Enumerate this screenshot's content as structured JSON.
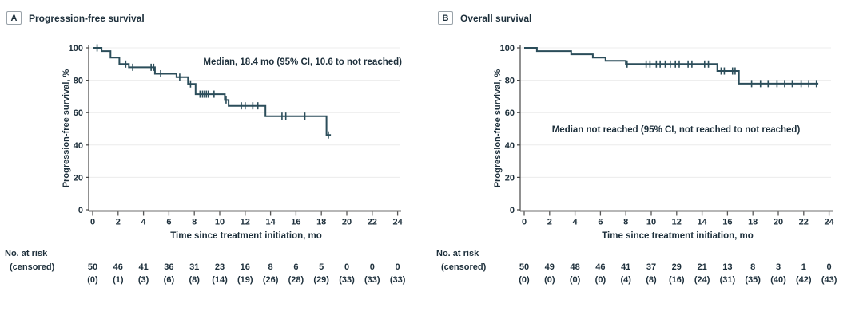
{
  "figure": {
    "colors": {
      "curve": "#2b4d5a",
      "text": "#1d2f3b",
      "grid": "#ececec",
      "x_axis": "#6f6f6f",
      "y_axis": "#474747",
      "tick": "#565656"
    },
    "panels": [
      {
        "label": "A",
        "title": "Progression-free survival"
      },
      {
        "label": "B",
        "title": "Overall survival"
      }
    ]
  },
  "chart_data": [
    {
      "type": "line",
      "subtype": "kaplan-meier-step",
      "panel_label": "A",
      "title": "Progression-free survival",
      "annotation": "Median, 18.4 mo (95% CI, 10.6 to not reached)",
      "xlabel": "Time since treatment initiation, mo",
      "ylabel": "Progression-free survival, %",
      "xlim": [
        0,
        24
      ],
      "ylim": [
        0,
        100
      ],
      "xticks": [
        0,
        2,
        4,
        6,
        8,
        10,
        12,
        14,
        16,
        18,
        20,
        22,
        24
      ],
      "yticks": [
        0,
        20,
        40,
        60,
        80,
        100
      ],
      "grid": true,
      "steps": [
        [
          0,
          100
        ],
        [
          0.7,
          98
        ],
        [
          1.4,
          94
        ],
        [
          2.1,
          90
        ],
        [
          2.85,
          88
        ],
        [
          4.9,
          84
        ],
        [
          6.6,
          81.9
        ],
        [
          7.5,
          77.7
        ],
        [
          8.1,
          71.4
        ],
        [
          10.4,
          67.8
        ],
        [
          10.7,
          64.2
        ],
        [
          13.6,
          57.8
        ],
        [
          18.4,
          46.2
        ]
      ],
      "curve_end": 18.75,
      "censor_marks": [
        [
          0.35,
          100
        ],
        [
          2.6,
          90
        ],
        [
          3.15,
          88
        ],
        [
          4.6,
          88
        ],
        [
          4.8,
          88
        ],
        [
          5.35,
          84
        ],
        [
          6.85,
          81.9
        ],
        [
          7.7,
          77.7
        ],
        [
          8.45,
          71.4
        ],
        [
          8.65,
          71.4
        ],
        [
          8.8,
          71.4
        ],
        [
          8.95,
          71.4
        ],
        [
          9.1,
          71.4
        ],
        [
          9.55,
          71.4
        ],
        [
          10.5,
          67.8
        ],
        [
          11.7,
          64.2
        ],
        [
          12.0,
          64.2
        ],
        [
          12.6,
          64.2
        ],
        [
          13.0,
          64.2
        ],
        [
          14.9,
          57.8
        ],
        [
          15.2,
          57.8
        ],
        [
          16.7,
          57.8
        ],
        [
          18.55,
          46.2
        ]
      ],
      "risk_table": {
        "header_line1": "No. at risk",
        "header_line2": "(censored)",
        "times": [
          0,
          2,
          4,
          6,
          8,
          10,
          12,
          14,
          16,
          18,
          20,
          22,
          24
        ],
        "at_risk": [
          50,
          46,
          41,
          36,
          31,
          23,
          16,
          8,
          6,
          5,
          0,
          0,
          0
        ],
        "censored": [
          0,
          1,
          3,
          6,
          8,
          14,
          19,
          26,
          28,
          29,
          33,
          33,
          33
        ]
      }
    },
    {
      "type": "line",
      "subtype": "kaplan-meier-step",
      "panel_label": "B",
      "title": "Overall survival",
      "annotation": "Median not reached (95% CI, not reached to not reached)",
      "xlabel": "Time since treatment initiation, mo",
      "ylabel": "Progression-free survival, %",
      "xlim": [
        0,
        24
      ],
      "ylim": [
        0,
        100
      ],
      "xticks": [
        0,
        2,
        4,
        6,
        8,
        10,
        12,
        14,
        16,
        18,
        20,
        22,
        24
      ],
      "yticks": [
        0,
        20,
        40,
        60,
        80,
        100
      ],
      "grid": true,
      "steps": [
        [
          0,
          100
        ],
        [
          1.0,
          98
        ],
        [
          3.7,
          96
        ],
        [
          5.4,
          94
        ],
        [
          6.4,
          92
        ],
        [
          8.0,
          90
        ],
        [
          15.2,
          85.7
        ],
        [
          16.9,
          77.9
        ]
      ],
      "curve_end": 23.15,
      "censor_marks": [
        [
          8.1,
          90
        ],
        [
          9.6,
          90
        ],
        [
          9.9,
          90
        ],
        [
          10.4,
          90
        ],
        [
          10.7,
          90
        ],
        [
          11.1,
          90
        ],
        [
          11.5,
          90
        ],
        [
          11.9,
          90
        ],
        [
          12.2,
          90
        ],
        [
          12.9,
          90
        ],
        [
          13.2,
          90
        ],
        [
          14.2,
          90
        ],
        [
          14.5,
          90
        ],
        [
          15.5,
          85.7
        ],
        [
          15.75,
          85.7
        ],
        [
          16.4,
          85.7
        ],
        [
          16.6,
          85.7
        ],
        [
          17.9,
          77.9
        ],
        [
          18.6,
          77.9
        ],
        [
          19.2,
          77.9
        ],
        [
          19.9,
          77.9
        ],
        [
          20.5,
          77.9
        ],
        [
          21.1,
          77.9
        ],
        [
          21.8,
          77.9
        ],
        [
          22.4,
          77.9
        ],
        [
          23.0,
          77.9
        ]
      ],
      "risk_table": {
        "header_line1": "No. at risk",
        "header_line2": "(censored)",
        "times": [
          0,
          2,
          4,
          6,
          8,
          10,
          12,
          14,
          16,
          18,
          20,
          22,
          24
        ],
        "at_risk": [
          50,
          49,
          48,
          46,
          41,
          37,
          29,
          21,
          13,
          8,
          3,
          1,
          0
        ],
        "censored": [
          0,
          0,
          0,
          0,
          4,
          8,
          16,
          24,
          31,
          35,
          40,
          42,
          43
        ]
      }
    }
  ]
}
